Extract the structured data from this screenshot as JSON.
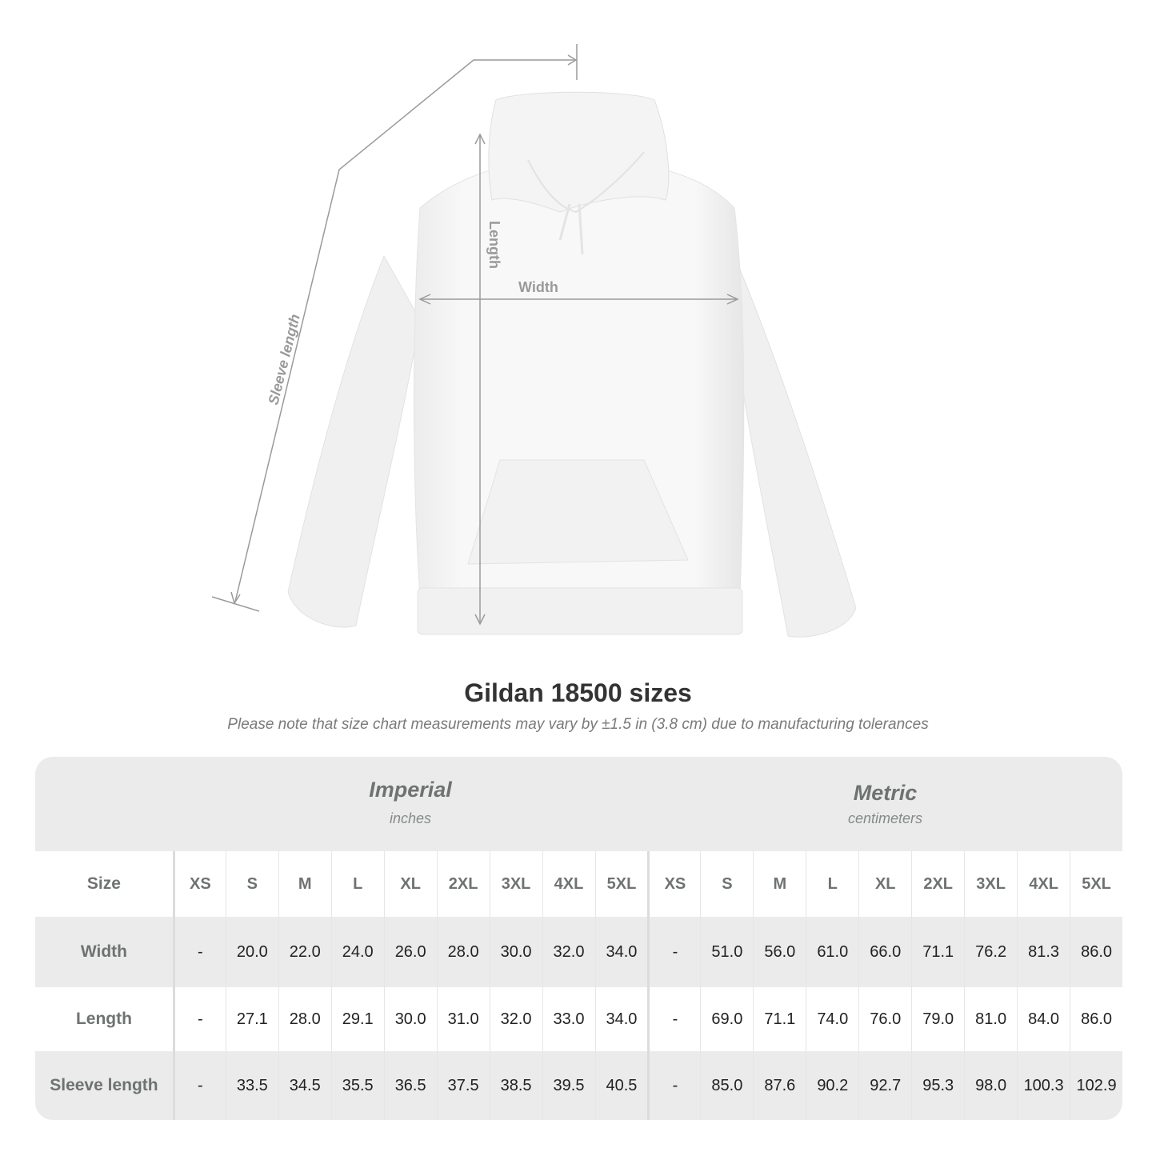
{
  "illustration": {
    "garment": "white hooded sweatshirt",
    "dimension_labels": {
      "length": "Length",
      "width": "Width",
      "sleeve": "Sleeve length"
    },
    "line_color": "#9a9a9a"
  },
  "title": "Gildan 18500 sizes",
  "subtitle": "Please note that size chart measurements may vary by ±1.5 in (3.8 cm) due to manufacturing tolerances",
  "table": {
    "imperial": {
      "label": "Imperial",
      "unit": "inches"
    },
    "metric": {
      "label": "Metric",
      "unit": "centimeters"
    },
    "size_header": "Size",
    "sizes": [
      "XS",
      "S",
      "M",
      "L",
      "XL",
      "2XL",
      "3XL",
      "4XL",
      "5XL"
    ],
    "rows": [
      {
        "label": "Width",
        "imperial": [
          "-",
          "20.0",
          "22.0",
          "24.0",
          "26.0",
          "28.0",
          "30.0",
          "32.0",
          "34.0"
        ],
        "metric": [
          "-",
          "51.0",
          "56.0",
          "61.0",
          "66.0",
          "71.1",
          "76.2",
          "81.3",
          "86.0"
        ]
      },
      {
        "label": "Length",
        "imperial": [
          "-",
          "27.1",
          "28.0",
          "29.1",
          "30.0",
          "31.0",
          "32.0",
          "33.0",
          "34.0"
        ],
        "metric": [
          "-",
          "69.0",
          "71.1",
          "74.0",
          "76.0",
          "79.0",
          "81.0",
          "84.0",
          "86.0"
        ]
      },
      {
        "label": "Sleeve length",
        "imperial": [
          "-",
          "33.5",
          "34.5",
          "35.5",
          "36.5",
          "37.5",
          "38.5",
          "39.5",
          "40.5"
        ],
        "metric": [
          "-",
          "85.0",
          "87.6",
          "90.2",
          "92.7",
          "95.3",
          "98.0",
          "100.3",
          "102.9"
        ]
      }
    ],
    "colors": {
      "band": "#ebebeb",
      "header_text": "#6e7372",
      "value_text": "#222222"
    }
  }
}
